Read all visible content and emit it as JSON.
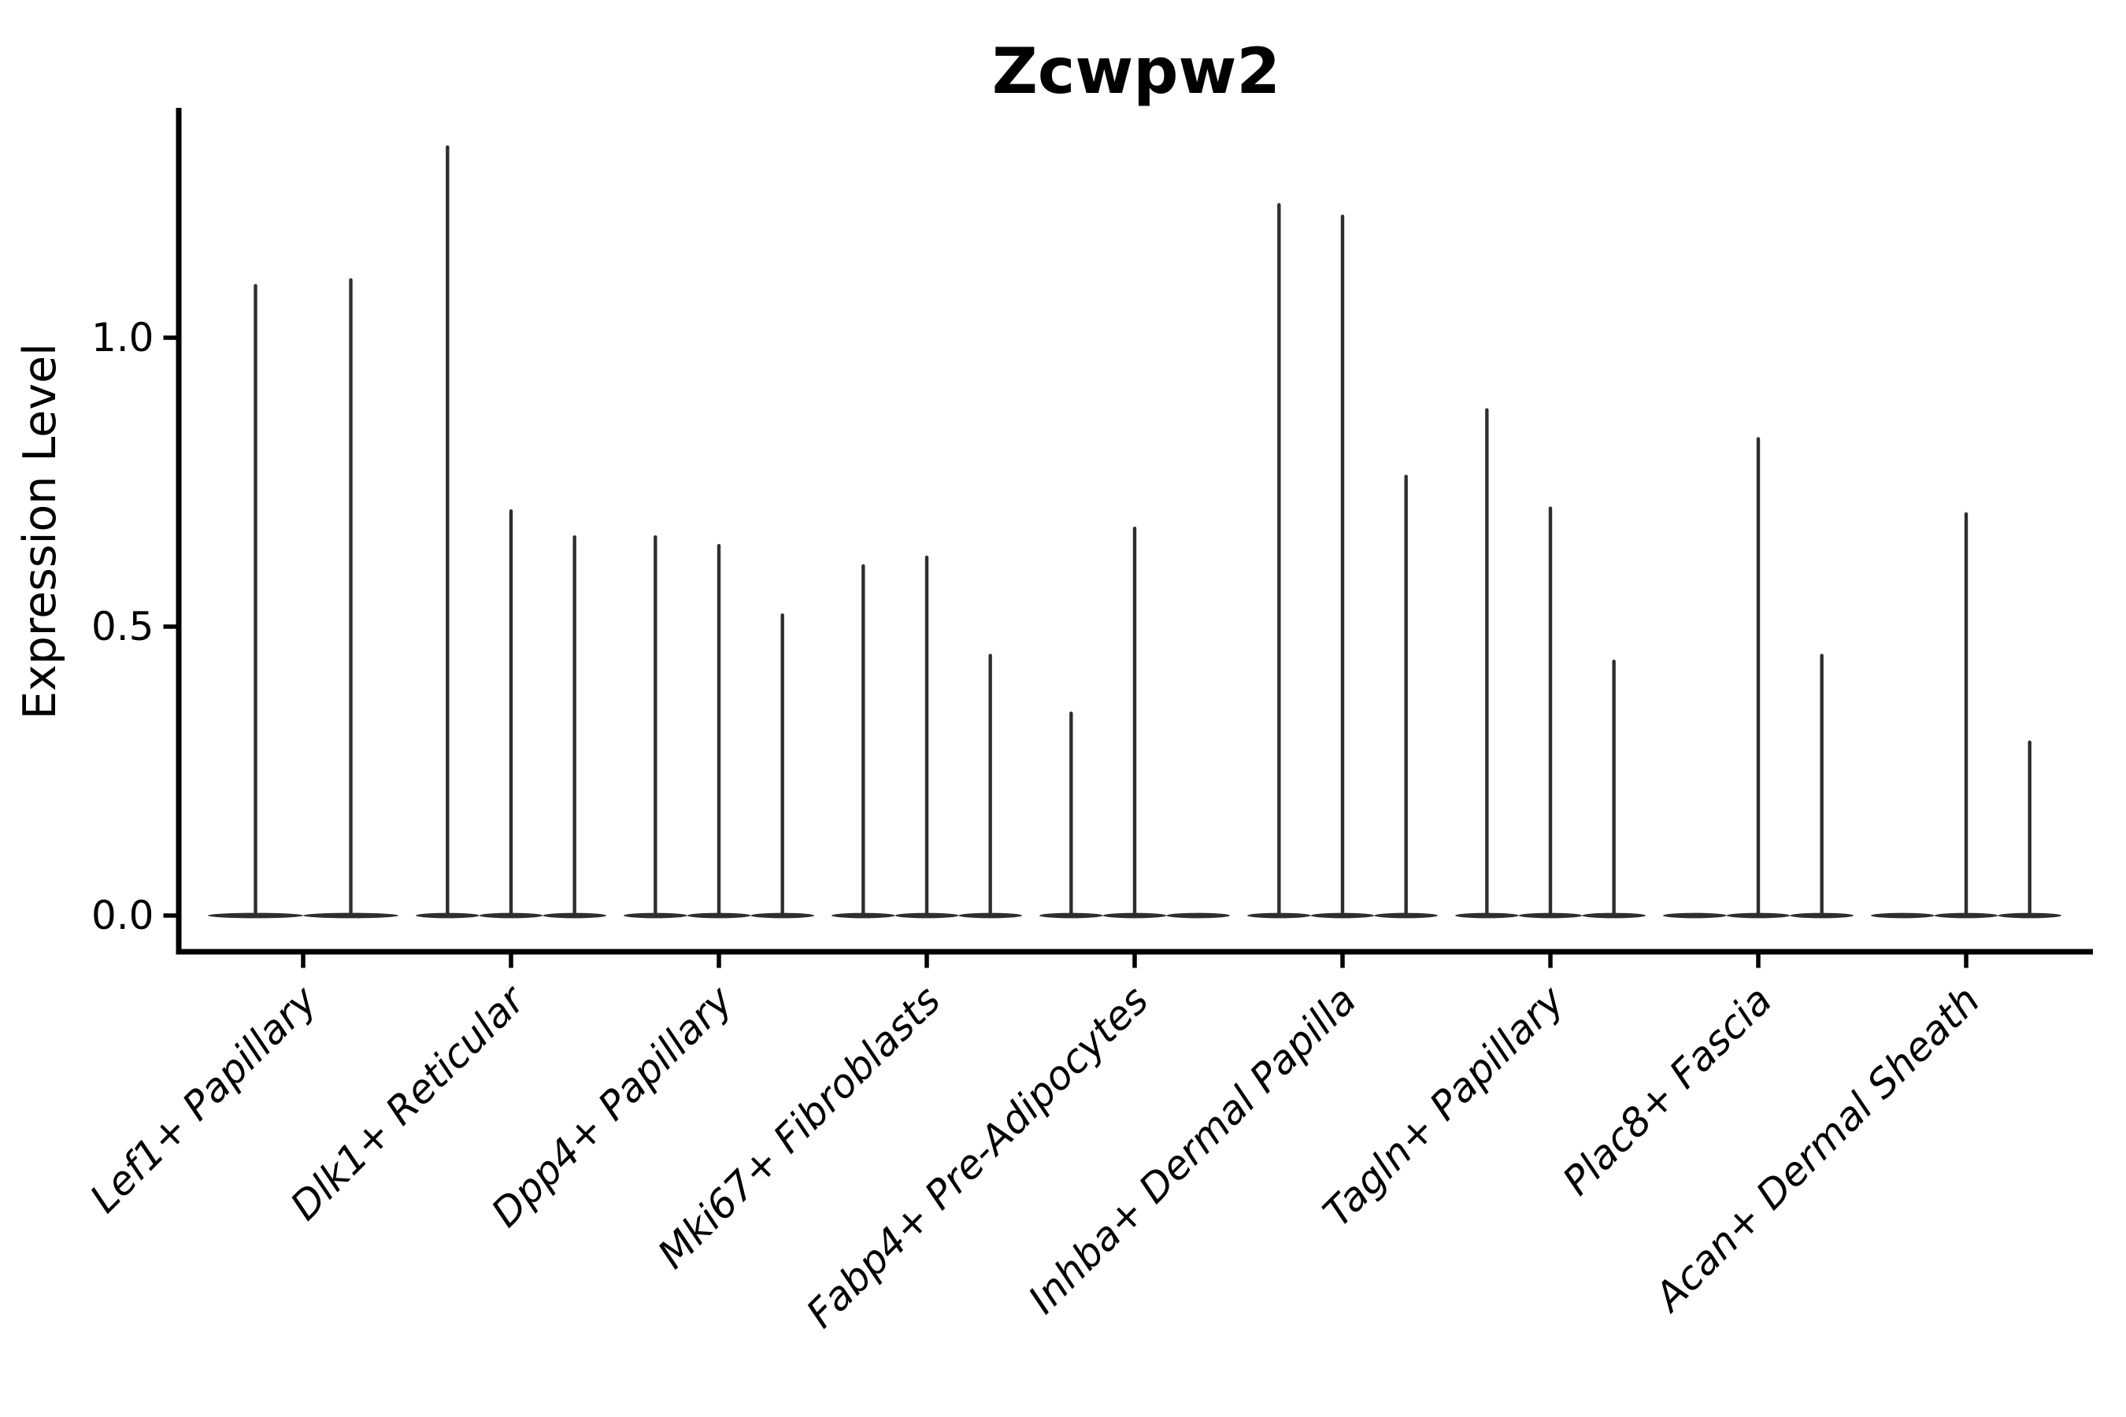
{
  "colors": {
    "background": "#ffffff",
    "axis": "#000000",
    "text": "#000000",
    "violin": "#2e2e2e"
  },
  "chart_data": {
    "type": "violin",
    "title": "Zcwpw2",
    "xlabel": "",
    "ylabel": "Expression Level",
    "yticks": [
      0.0,
      0.5,
      1.0
    ],
    "ytick_labels": [
      "0.0",
      "0.5",
      "1.0"
    ],
    "ylim": [
      -0.07,
      1.4
    ],
    "grid": false,
    "legend": "none",
    "x_tick_label_rotation": 45,
    "x_tick_label_style": "italic",
    "categories": [
      "Lef1+ Papillary",
      "Dlk1+ Reticular",
      "Dpp4+ Papillary",
      "Mki67+ Fibroblasts",
      "Fabp4+ Pre-Adipocytes",
      "Inhba+ Dermal Papilla",
      "Tagln+ Papillary",
      "Plac8+ Fascia",
      "Acan+ Dermal Sheath"
    ],
    "series": [
      {
        "category": "Lef1+ Papillary",
        "violin_maxima": [
          1.09,
          1.1
        ]
      },
      {
        "category": "Dlk1+ Reticular",
        "violin_maxima": [
          1.33,
          0.7,
          0.655
        ]
      },
      {
        "category": "Dpp4+ Papillary",
        "violin_maxima": [
          0.655,
          0.64,
          0.52
        ]
      },
      {
        "category": "Mki67+ Fibroblasts",
        "violin_maxima": [
          0.605,
          0.62,
          0.45
        ]
      },
      {
        "category": "Fabp4+ Pre-Adipocytes",
        "violin_maxima": [
          0.35,
          0.67,
          0
        ]
      },
      {
        "category": "Inhba+ Dermal Papilla",
        "violin_maxima": [
          1.23,
          1.21,
          0.76
        ]
      },
      {
        "category": "Tagln+ Papillary",
        "violin_maxima": [
          0.875,
          0.705,
          0.44
        ]
      },
      {
        "category": "Plac8+ Fascia",
        "violin_maxima": [
          0,
          0.825,
          0.45
        ]
      },
      {
        "category": "Acan+ Dermal Sheath",
        "violin_maxima": [
          0,
          0.695,
          0.3
        ]
      }
    ],
    "note": "Needle-shaped violins: nearly all density at 0 (flat lens on baseline) with a thin spike up to each violin's maximum expression value."
  }
}
